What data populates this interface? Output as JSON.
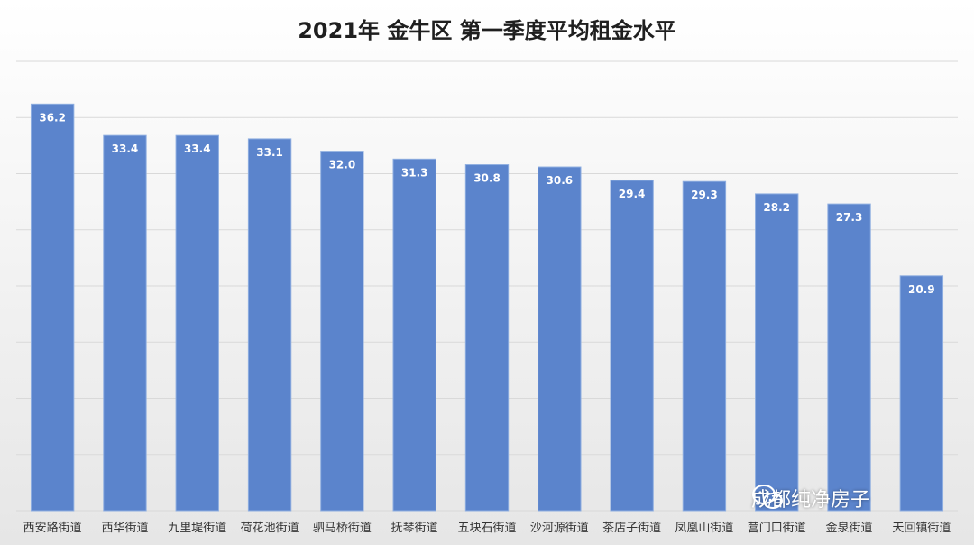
{
  "watermark_text": "成都纯净房子",
  "colors": {
    "bar": "#5b84cc",
    "grid": "#d9d9d9"
  },
  "chart_data": {
    "type": "bar",
    "title": "2021年 金牛区 第一季度平均租金水平",
    "categories": [
      "西安路街道",
      "西华街道",
      "九里堤街道",
      "荷花池街道",
      "驷马桥街道",
      "抚琴街道",
      "五块石街道",
      "沙河源街道",
      "茶店子街道",
      "凤凰山街道",
      "营门口街道",
      "金泉街道",
      "天回镇街道"
    ],
    "values": [
      36.2,
      33.4,
      33.4,
      33.1,
      32.0,
      31.3,
      30.8,
      30.6,
      29.4,
      29.3,
      28.2,
      27.3,
      20.9
    ],
    "value_labels": [
      "36.2",
      "33.4",
      "33.4",
      "33.1",
      "32.0",
      "31.3",
      "30.8",
      "30.6",
      "29.4",
      "29.3",
      "28.2",
      "27.3",
      "20.9"
    ],
    "ylim": [
      0,
      40
    ],
    "grid": true,
    "xlabel": "",
    "ylabel": ""
  }
}
